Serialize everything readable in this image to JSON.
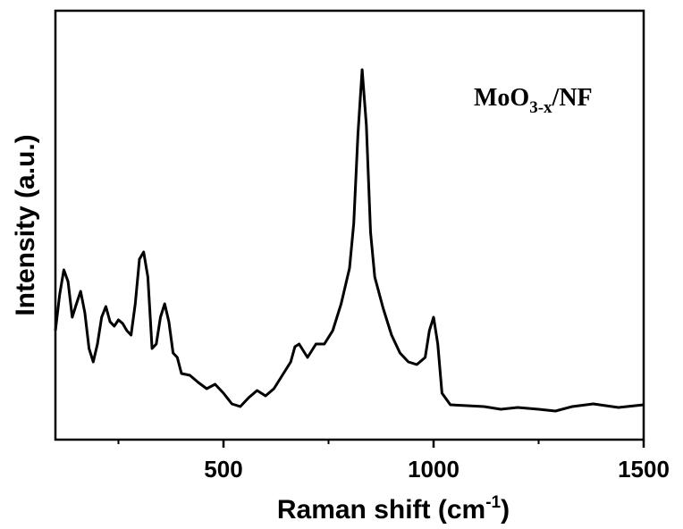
{
  "chart_data": {
    "type": "line",
    "annotation": [
      "MoO",
      "3-x",
      "/NF"
    ],
    "x_label": [
      "Raman shift (cm",
      "-1",
      ")"
    ],
    "y_label": "Intensity (a.u.)",
    "x": [
      100,
      110,
      120,
      130,
      140,
      150,
      160,
      170,
      180,
      190,
      200,
      210,
      220,
      230,
      240,
      250,
      260,
      270,
      280,
      290,
      300,
      310,
      320,
      330,
      340,
      350,
      360,
      370,
      380,
      390,
      400,
      420,
      440,
      460,
      480,
      500,
      520,
      540,
      560,
      580,
      600,
      620,
      640,
      660,
      670,
      680,
      700,
      720,
      740,
      760,
      780,
      800,
      810,
      820,
      830,
      840,
      850,
      860,
      880,
      900,
      920,
      940,
      960,
      980,
      990,
      1000,
      1010,
      1020,
      1040,
      1080,
      1120,
      1160,
      1200,
      1250,
      1290,
      1330,
      1380,
      1440,
      1500
    ],
    "values": [
      122,
      162,
      190,
      177,
      137,
      152,
      166,
      142,
      102,
      87,
      107,
      137,
      149,
      132,
      127,
      134,
      130,
      122,
      117,
      152,
      202,
      210,
      182,
      102,
      107,
      137,
      152,
      132,
      97,
      92,
      74,
      72,
      64,
      57,
      62,
      52,
      40,
      37,
      47,
      55,
      49,
      57,
      72,
      87,
      104,
      107,
      92,
      107,
      107,
      122,
      152,
      192,
      242,
      342,
      414,
      352,
      232,
      182,
      147,
      117,
      97,
      87,
      84,
      92,
      122,
      137,
      107,
      52,
      39,
      38,
      37,
      34,
      36,
      34,
      32,
      37,
      40,
      36,
      39
    ],
    "color": "#000000",
    "xlim": [
      100,
      1500
    ],
    "ylim": [
      0,
      480
    ],
    "xticks": [
      500,
      1000,
      1500
    ],
    "xminorticks": [
      250,
      750,
      1250
    ]
  }
}
